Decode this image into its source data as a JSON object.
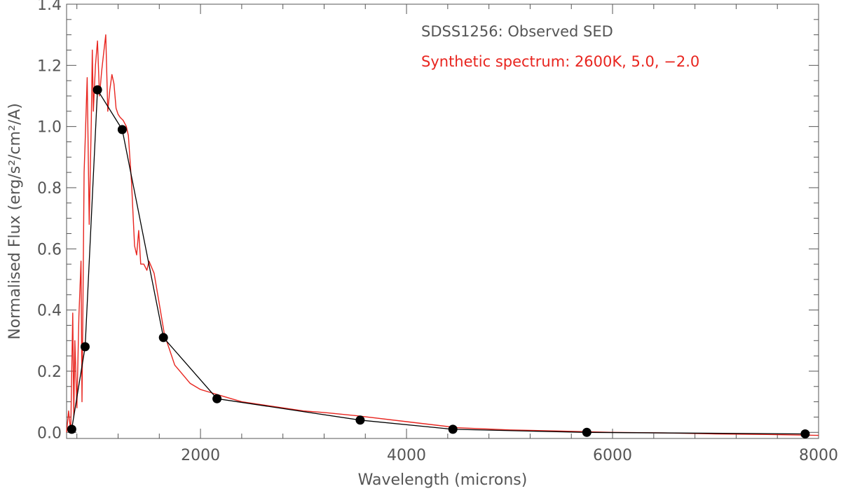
{
  "chart_data": {
    "type": "line",
    "xlabel": "Wavelength (microns)",
    "ylabel": "Normalised Flux (erg/s²/cm²/A)",
    "xlim": [
      700,
      8000
    ],
    "ylim": [
      -0.02,
      1.4
    ],
    "x_ticks": [
      2000,
      4000,
      6000,
      8000
    ],
    "y_ticks": [
      0.0,
      0.2,
      0.4,
      0.6,
      0.8,
      1.0,
      1.2,
      1.4
    ],
    "x_tick_labels": [
      "2000",
      "4000",
      "6000",
      "8000"
    ],
    "y_tick_labels": [
      "0.0",
      "0.2",
      "0.4",
      "0.6",
      "0.8",
      "1.0",
      "1.2",
      "1.4"
    ],
    "grid": false,
    "legend_position": "top-right",
    "series": [
      {
        "name": "SDSS1256: Observed SED",
        "color": "#000000",
        "style": "line-with-markers",
        "x": [
          750,
          880,
          1000,
          1240,
          1640,
          2160,
          3550,
          4450,
          5750,
          7870
        ],
        "y": [
          0.01,
          0.28,
          1.12,
          0.99,
          0.31,
          0.11,
          0.04,
          0.01,
          0.0,
          -0.005
        ]
      },
      {
        "name": "Synthetic spectrum: 2600K, 5.0, −2.0",
        "color": "#e8251f",
        "style": "line",
        "x": [
          700,
          720,
          740,
          760,
          770,
          780,
          800,
          820,
          840,
          850,
          860,
          870,
          880,
          900,
          920,
          940,
          950,
          960,
          980,
          1000,
          1020,
          1040,
          1060,
          1080,
          1100,
          1120,
          1140,
          1160,
          1180,
          1200,
          1220,
          1250,
          1280,
          1300,
          1330,
          1360,
          1380,
          1400,
          1420,
          1450,
          1480,
          1500,
          1550,
          1600,
          1650,
          1700,
          1750,
          1800,
          1900,
          2000,
          2100,
          2200,
          2400,
          2600,
          2800,
          3000,
          3200,
          3500,
          4000,
          4500,
          5000,
          5500,
          6000,
          6500,
          7000,
          7500,
          8000
        ],
        "y": [
          0.0,
          0.07,
          0.0,
          0.39,
          0.05,
          0.3,
          0.08,
          0.38,
          0.56,
          0.1,
          0.45,
          0.85,
          0.95,
          1.16,
          0.68,
          1.02,
          1.25,
          1.05,
          1.2,
          1.28,
          1.1,
          1.18,
          1.24,
          1.3,
          1.05,
          1.12,
          1.17,
          1.14,
          1.06,
          1.04,
          1.03,
          1.02,
          1.0,
          0.97,
          0.82,
          0.61,
          0.58,
          0.66,
          0.55,
          0.55,
          0.53,
          0.56,
          0.52,
          0.42,
          0.32,
          0.27,
          0.22,
          0.2,
          0.16,
          0.14,
          0.13,
          0.12,
          0.1,
          0.09,
          0.08,
          0.07,
          0.065,
          0.055,
          0.035,
          0.015,
          0.008,
          0.004,
          0.0,
          -0.002,
          -0.005,
          -0.007,
          -0.01
        ]
      }
    ]
  }
}
